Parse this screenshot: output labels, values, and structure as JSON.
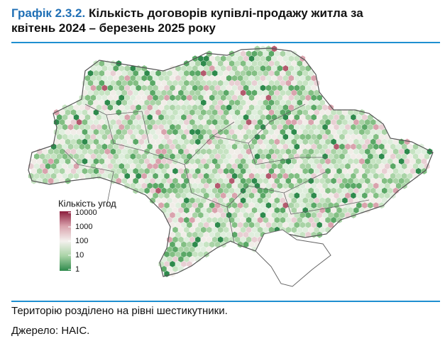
{
  "header": {
    "figure_label": "Графік 2.3.2.",
    "title_line1": "Кількість договорів купівлі-продажу житла за",
    "title_line2": "квітень 2024 – березень 2025 року"
  },
  "legend": {
    "title": "Кількість угод",
    "ticks": [
      10000,
      1000,
      100,
      10,
      1
    ],
    "log_scale": true,
    "colors": [
      "#8c1d3c",
      "#d9a3ad",
      "#f4f1ee",
      "#a9d3a6",
      "#2e8a4c"
    ]
  },
  "footer": {
    "note": "Територію розділено на рівні шестикутники.",
    "source": "Джерело: НАІС."
  }
}
